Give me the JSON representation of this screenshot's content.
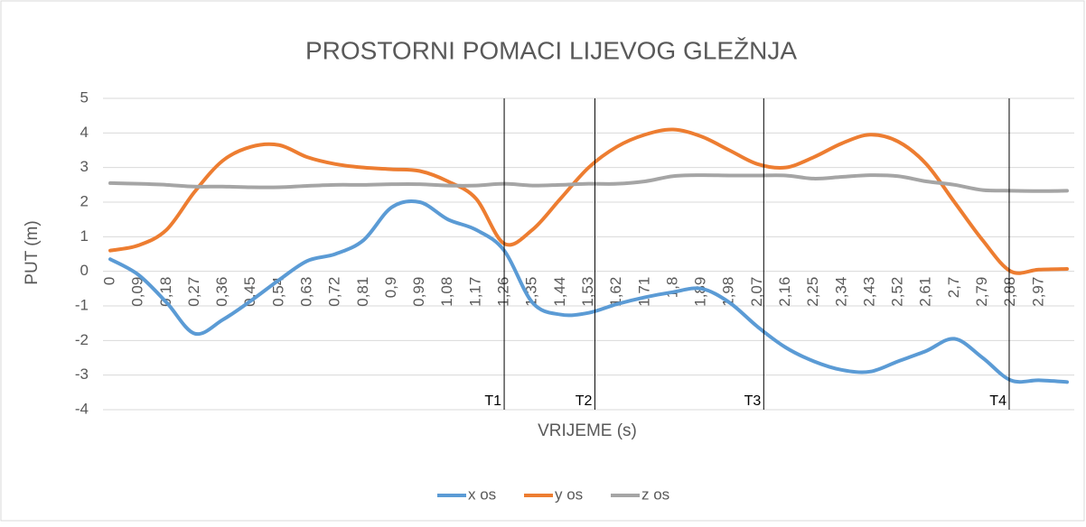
{
  "chart_data": {
    "type": "line",
    "title": "PROSTORNI POMACI LIJEVOG GLEŽNJA",
    "x_label": "VRIJEME (s)",
    "y_label": "PUT (m)",
    "categories": [
      "0",
      "0,09",
      "0,18",
      "0,27",
      "0,36",
      "0,45",
      "0,54",
      "0,63",
      "0,72",
      "0,81",
      "0,9",
      "0,99",
      "1,08",
      "1,17",
      "1,26",
      "1,35",
      "1,44",
      "1,53",
      "1,62",
      "1,71",
      "1,8",
      "1,89",
      "1,98",
      "2,07",
      "2,16",
      "2,25",
      "2,34",
      "2,43",
      "2,52",
      "2,61",
      "2,7",
      "2,79",
      "2,88",
      "2,97",
      null
    ],
    "xlim": [
      0,
      3.06
    ],
    "series": [
      {
        "name": "x os",
        "color": "#5b9bd5",
        "values": [
          0.35,
          -0.1,
          -0.9,
          -1.8,
          -1.4,
          -0.85,
          -0.25,
          0.3,
          0.5,
          0.9,
          1.85,
          2.0,
          1.5,
          1.2,
          0.6,
          -0.9,
          -1.25,
          -1.2,
          -0.95,
          -0.75,
          -0.6,
          -0.5,
          -0.9,
          -1.6,
          -2.2,
          -2.6,
          -2.85,
          -2.9,
          -2.6,
          -2.3,
          -1.95,
          -2.5,
          -3.15,
          -3.15,
          -3.2
        ]
      },
      {
        "name": "y os",
        "color": "#ed7d31",
        "values": [
          0.6,
          0.75,
          1.2,
          2.3,
          3.2,
          3.6,
          3.65,
          3.3,
          3.1,
          3.0,
          2.95,
          2.9,
          2.6,
          2.1,
          0.8,
          1.2,
          2.1,
          3.0,
          3.6,
          3.95,
          4.1,
          3.9,
          3.5,
          3.1,
          3.0,
          3.3,
          3.7,
          3.95,
          3.75,
          3.1,
          2.0,
          0.9,
          0.0,
          0.05,
          0.07
        ]
      },
      {
        "name": "z os",
        "color": "#a5a5a5",
        "values": [
          2.55,
          2.53,
          2.5,
          2.45,
          2.45,
          2.43,
          2.43,
          2.47,
          2.5,
          2.5,
          2.52,
          2.52,
          2.48,
          2.48,
          2.53,
          2.48,
          2.5,
          2.53,
          2.53,
          2.6,
          2.75,
          2.78,
          2.77,
          2.77,
          2.77,
          2.68,
          2.73,
          2.78,
          2.75,
          2.6,
          2.5,
          2.35,
          2.33,
          2.32,
          2.33
        ]
      }
    ],
    "annotations": [
      {
        "label": "T1",
        "x": 1.26
      },
      {
        "label": "T2",
        "x": 1.55
      },
      {
        "label": "T3",
        "x": 2.09
      },
      {
        "label": "T4",
        "x": 2.875
      }
    ],
    "ylim": [
      -4,
      5
    ],
    "yticks": [
      -4,
      -3,
      -2,
      -1,
      0,
      1,
      2,
      3,
      4,
      5
    ],
    "grid": true,
    "legend": "bottom"
  }
}
